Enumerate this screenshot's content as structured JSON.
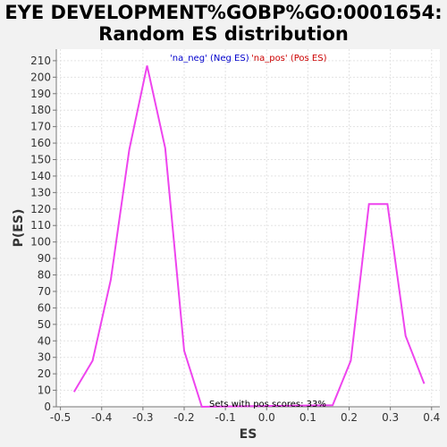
{
  "chart_data": {
    "type": "line",
    "title_line1": "EYE DEVELOPMENT%GOBP%GO:0001654:",
    "title_line2": "Random ES distribution",
    "xlabel": "ES",
    "ylabel": "P(ES)",
    "xlim": [
      -0.51,
      0.42
    ],
    "ylim": [
      0,
      217
    ],
    "x_ticks": [
      -0.5,
      -0.4,
      -0.3,
      -0.2,
      -0.1,
      0.0,
      0.1,
      0.2,
      0.3,
      0.4
    ],
    "x_tick_labels": [
      "-0.5",
      "-0.4",
      "-0.3",
      "-0.2",
      "-0.1",
      "0.0",
      "0.1",
      "0.2",
      "0.3",
      "0.4"
    ],
    "y_ticks": [
      0,
      10,
      20,
      30,
      40,
      50,
      60,
      70,
      80,
      90,
      100,
      110,
      120,
      130,
      140,
      150,
      160,
      170,
      180,
      190,
      200,
      210
    ],
    "grid": true,
    "legend": {
      "placement": "top-center",
      "entries": [
        {
          "label": "'na_neg' (Neg ES)",
          "color": "#0000cc"
        },
        {
          "label": "'na_pos' (Pos ES)",
          "color": "#cc0000"
        }
      ]
    },
    "annotation": "Sets with pos scores: 33%",
    "series": [
      {
        "color": "#ee44ee",
        "x": [
          -0.467,
          -0.422,
          -0.378,
          -0.333,
          -0.29,
          -0.246,
          -0.2,
          -0.157,
          0.16,
          0.204,
          0.248,
          0.293,
          0.337,
          0.382
        ],
        "y": [
          9,
          28,
          77,
          156,
          207,
          157,
          34,
          0,
          1,
          28,
          123,
          123,
          43,
          14
        ]
      }
    ]
  }
}
